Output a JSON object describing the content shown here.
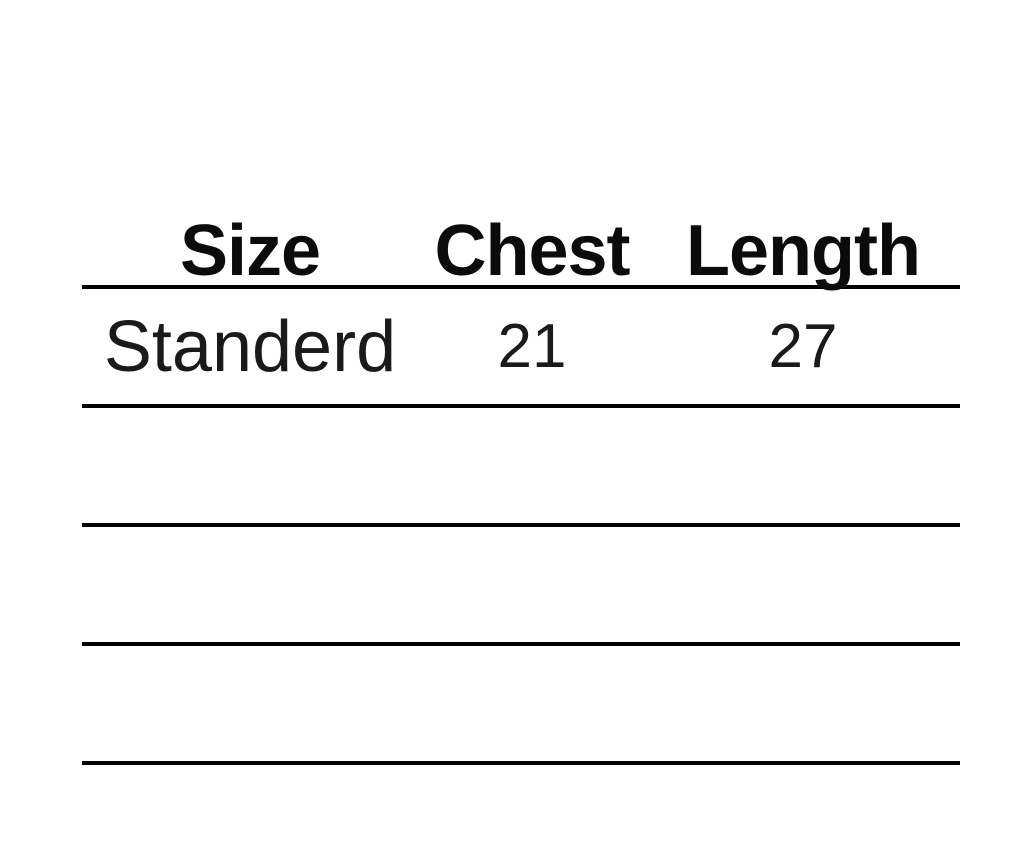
{
  "page": {
    "background": "#ffffff",
    "text_color": "#111111",
    "line_color": "#000000"
  },
  "chart_data": {
    "type": "table",
    "columns": [
      "Size",
      "Chest",
      "Length"
    ],
    "rows": [
      [
        "Standerd",
        "21",
        "27"
      ],
      [
        "",
        "",
        ""
      ],
      [
        "",
        "",
        ""
      ],
      [
        "",
        "",
        ""
      ]
    ],
    "layout": {
      "grid": "horizontal-rules-only",
      "header_style": "bold",
      "body_style": "light",
      "alignment": "center"
    }
  }
}
